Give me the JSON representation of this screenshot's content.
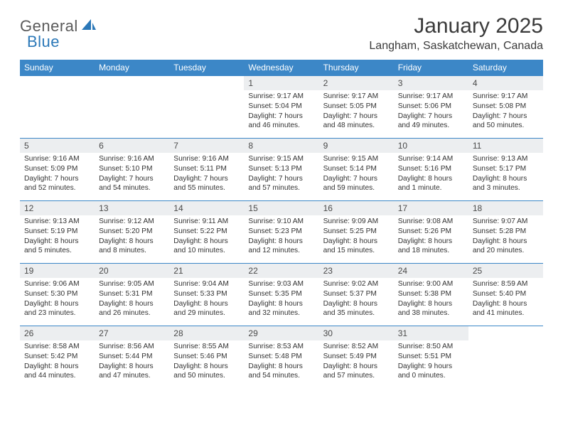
{
  "logo": {
    "text1": "General",
    "text2": "Blue",
    "mark_color": "#2b78b8"
  },
  "title": "January 2025",
  "location": "Langham, Saskatchewan, Canada",
  "colors": {
    "header_bg": "#3c87c7",
    "header_text": "#ffffff",
    "daynum_bg": "#eceef0",
    "border": "#3c87c7",
    "body_text": "#333333"
  },
  "days_of_week": [
    "Sunday",
    "Monday",
    "Tuesday",
    "Wednesday",
    "Thursday",
    "Friday",
    "Saturday"
  ],
  "weeks": [
    [
      null,
      null,
      null,
      {
        "n": "1",
        "sr": "Sunrise: 9:17 AM",
        "ss": "Sunset: 5:04 PM",
        "d1": "Daylight: 7 hours",
        "d2": "and 46 minutes."
      },
      {
        "n": "2",
        "sr": "Sunrise: 9:17 AM",
        "ss": "Sunset: 5:05 PM",
        "d1": "Daylight: 7 hours",
        "d2": "and 48 minutes."
      },
      {
        "n": "3",
        "sr": "Sunrise: 9:17 AM",
        "ss": "Sunset: 5:06 PM",
        "d1": "Daylight: 7 hours",
        "d2": "and 49 minutes."
      },
      {
        "n": "4",
        "sr": "Sunrise: 9:17 AM",
        "ss": "Sunset: 5:08 PM",
        "d1": "Daylight: 7 hours",
        "d2": "and 50 minutes."
      }
    ],
    [
      {
        "n": "5",
        "sr": "Sunrise: 9:16 AM",
        "ss": "Sunset: 5:09 PM",
        "d1": "Daylight: 7 hours",
        "d2": "and 52 minutes."
      },
      {
        "n": "6",
        "sr": "Sunrise: 9:16 AM",
        "ss": "Sunset: 5:10 PM",
        "d1": "Daylight: 7 hours",
        "d2": "and 54 minutes."
      },
      {
        "n": "7",
        "sr": "Sunrise: 9:16 AM",
        "ss": "Sunset: 5:11 PM",
        "d1": "Daylight: 7 hours",
        "d2": "and 55 minutes."
      },
      {
        "n": "8",
        "sr": "Sunrise: 9:15 AM",
        "ss": "Sunset: 5:13 PM",
        "d1": "Daylight: 7 hours",
        "d2": "and 57 minutes."
      },
      {
        "n": "9",
        "sr": "Sunrise: 9:15 AM",
        "ss": "Sunset: 5:14 PM",
        "d1": "Daylight: 7 hours",
        "d2": "and 59 minutes."
      },
      {
        "n": "10",
        "sr": "Sunrise: 9:14 AM",
        "ss": "Sunset: 5:16 PM",
        "d1": "Daylight: 8 hours",
        "d2": "and 1 minute."
      },
      {
        "n": "11",
        "sr": "Sunrise: 9:13 AM",
        "ss": "Sunset: 5:17 PM",
        "d1": "Daylight: 8 hours",
        "d2": "and 3 minutes."
      }
    ],
    [
      {
        "n": "12",
        "sr": "Sunrise: 9:13 AM",
        "ss": "Sunset: 5:19 PM",
        "d1": "Daylight: 8 hours",
        "d2": "and 5 minutes."
      },
      {
        "n": "13",
        "sr": "Sunrise: 9:12 AM",
        "ss": "Sunset: 5:20 PM",
        "d1": "Daylight: 8 hours",
        "d2": "and 8 minutes."
      },
      {
        "n": "14",
        "sr": "Sunrise: 9:11 AM",
        "ss": "Sunset: 5:22 PM",
        "d1": "Daylight: 8 hours",
        "d2": "and 10 minutes."
      },
      {
        "n": "15",
        "sr": "Sunrise: 9:10 AM",
        "ss": "Sunset: 5:23 PM",
        "d1": "Daylight: 8 hours",
        "d2": "and 12 minutes."
      },
      {
        "n": "16",
        "sr": "Sunrise: 9:09 AM",
        "ss": "Sunset: 5:25 PM",
        "d1": "Daylight: 8 hours",
        "d2": "and 15 minutes."
      },
      {
        "n": "17",
        "sr": "Sunrise: 9:08 AM",
        "ss": "Sunset: 5:26 PM",
        "d1": "Daylight: 8 hours",
        "d2": "and 18 minutes."
      },
      {
        "n": "18",
        "sr": "Sunrise: 9:07 AM",
        "ss": "Sunset: 5:28 PM",
        "d1": "Daylight: 8 hours",
        "d2": "and 20 minutes."
      }
    ],
    [
      {
        "n": "19",
        "sr": "Sunrise: 9:06 AM",
        "ss": "Sunset: 5:30 PM",
        "d1": "Daylight: 8 hours",
        "d2": "and 23 minutes."
      },
      {
        "n": "20",
        "sr": "Sunrise: 9:05 AM",
        "ss": "Sunset: 5:31 PM",
        "d1": "Daylight: 8 hours",
        "d2": "and 26 minutes."
      },
      {
        "n": "21",
        "sr": "Sunrise: 9:04 AM",
        "ss": "Sunset: 5:33 PM",
        "d1": "Daylight: 8 hours",
        "d2": "and 29 minutes."
      },
      {
        "n": "22",
        "sr": "Sunrise: 9:03 AM",
        "ss": "Sunset: 5:35 PM",
        "d1": "Daylight: 8 hours",
        "d2": "and 32 minutes."
      },
      {
        "n": "23",
        "sr": "Sunrise: 9:02 AM",
        "ss": "Sunset: 5:37 PM",
        "d1": "Daylight: 8 hours",
        "d2": "and 35 minutes."
      },
      {
        "n": "24",
        "sr": "Sunrise: 9:00 AM",
        "ss": "Sunset: 5:38 PM",
        "d1": "Daylight: 8 hours",
        "d2": "and 38 minutes."
      },
      {
        "n": "25",
        "sr": "Sunrise: 8:59 AM",
        "ss": "Sunset: 5:40 PM",
        "d1": "Daylight: 8 hours",
        "d2": "and 41 minutes."
      }
    ],
    [
      {
        "n": "26",
        "sr": "Sunrise: 8:58 AM",
        "ss": "Sunset: 5:42 PM",
        "d1": "Daylight: 8 hours",
        "d2": "and 44 minutes."
      },
      {
        "n": "27",
        "sr": "Sunrise: 8:56 AM",
        "ss": "Sunset: 5:44 PM",
        "d1": "Daylight: 8 hours",
        "d2": "and 47 minutes."
      },
      {
        "n": "28",
        "sr": "Sunrise: 8:55 AM",
        "ss": "Sunset: 5:46 PM",
        "d1": "Daylight: 8 hours",
        "d2": "and 50 minutes."
      },
      {
        "n": "29",
        "sr": "Sunrise: 8:53 AM",
        "ss": "Sunset: 5:48 PM",
        "d1": "Daylight: 8 hours",
        "d2": "and 54 minutes."
      },
      {
        "n": "30",
        "sr": "Sunrise: 8:52 AM",
        "ss": "Sunset: 5:49 PM",
        "d1": "Daylight: 8 hours",
        "d2": "and 57 minutes."
      },
      {
        "n": "31",
        "sr": "Sunrise: 8:50 AM",
        "ss": "Sunset: 5:51 PM",
        "d1": "Daylight: 9 hours",
        "d2": "and 0 minutes."
      },
      null
    ]
  ]
}
